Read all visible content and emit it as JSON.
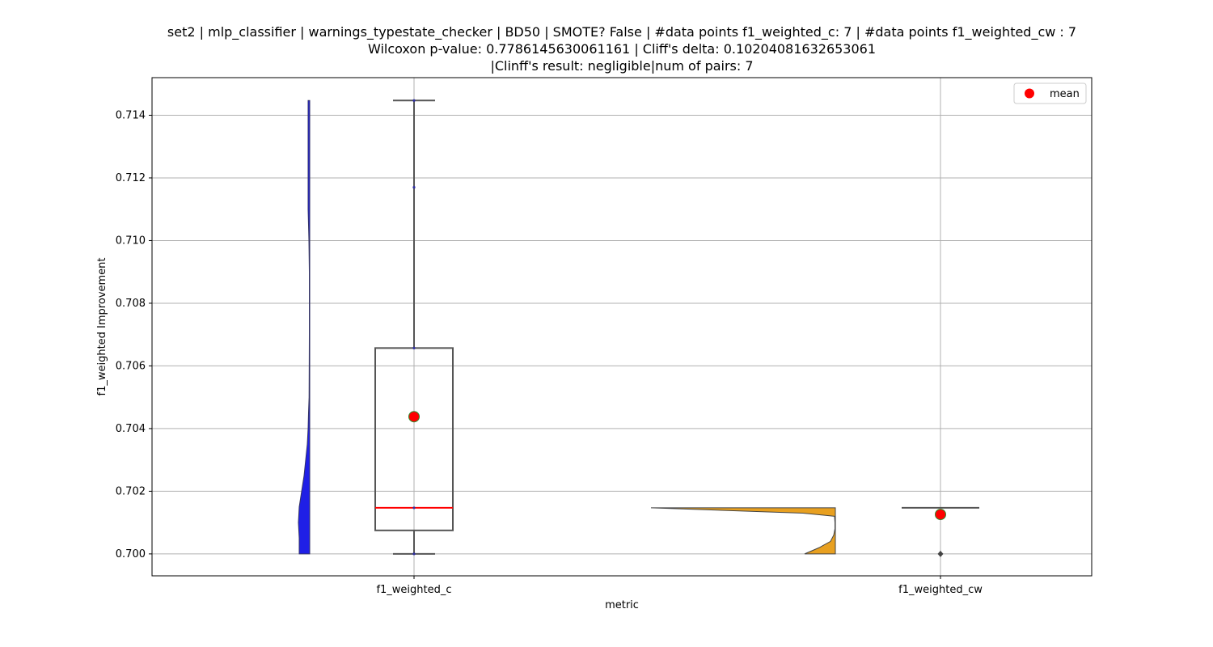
{
  "title_lines": [
    "set2 | mlp_classifier | warnings_typestate_checker | BD50 | SMOTE? False | #data points f1_weighted_c: 7 | #data points f1_weighted_cw : 7",
    "Wilcoxon p-value: 0.7786145630061161 | Cliff's delta: 0.10204081632653061",
    "|Clinff's result: negligible|num of pairs: 7"
  ],
  "chart_data": {
    "type": "violin+box",
    "title": "set2 | mlp_classifier | warnings_typestate_checker | BD50 | SMOTE? False | #data points f1_weighted_c: 7 | #data points f1_weighted_cw : 7 / Wilcoxon p-value: 0.7786145630061161 | Cliff's delta: 0.10204081632653061 / |Clinff's result: negligible|num of pairs: 7",
    "xlabel": "metric",
    "ylabel": "f1_weighted Improvement",
    "categories": [
      "f1_weighted_c",
      "f1_weighted_cw"
    ],
    "ylim": [
      0.6993,
      0.7152
    ],
    "yticks": [
      0.7,
      0.702,
      0.704,
      0.706,
      0.708,
      0.71,
      0.712,
      0.714
    ],
    "ytick_labels": [
      "0.700",
      "0.702",
      "0.704",
      "0.706",
      "0.708",
      "0.710",
      "0.712",
      "0.714"
    ],
    "grid": true,
    "legend": {
      "position": "upper-right",
      "entries": [
        {
          "label": "mean",
          "color": "#ff0000"
        }
      ]
    },
    "series": [
      {
        "category": "f1_weighted_c",
        "violin_color": "#1f1fe6",
        "box": {
          "whisker_low": 0.7,
          "q1": 0.70075,
          "median": 0.70147,
          "q3": 0.70657,
          "whisker_high": 0.71447
        },
        "mean": 0.70438,
        "points": [
          0.7,
          0.70147,
          0.70657,
          0.7117,
          0.71447
        ]
      },
      {
        "category": "f1_weighted_cw",
        "violin_color": "#e8a020",
        "box": {
          "whisker_low": 0.70147,
          "q1": 0.70147,
          "median": 0.70147,
          "q3": 0.70147,
          "whisker_high": 0.70147
        },
        "mean": 0.70126,
        "outliers": [
          0.7
        ]
      }
    ],
    "colors": {
      "median": "#ff0000",
      "mean_fill": "#ff0000",
      "mean_edge": "#2e8b2e",
      "box_edge": "#555555",
      "grid": "#b0b0b0"
    }
  }
}
